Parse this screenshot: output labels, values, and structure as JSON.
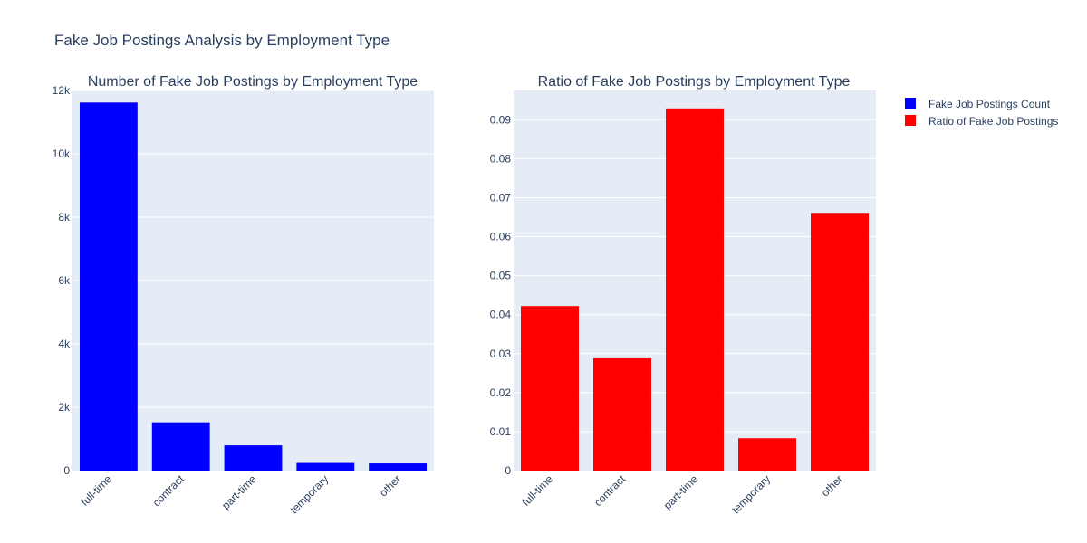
{
  "figure": {
    "title": "Fake Job Postings Analysis by Employment Type",
    "plot_bg": "#e5ecf6",
    "grid_color": "#ffffff",
    "text_color": "#2a3f5f"
  },
  "legend": {
    "items": [
      {
        "label": "Fake Job Postings Count",
        "color": "#0000ff"
      },
      {
        "label": "Ratio of Fake Job Postings",
        "color": "#ff0000"
      }
    ]
  },
  "chart_data": [
    {
      "type": "bar",
      "title": "Number of Fake Job Postings by Employment Type",
      "series_name": "Fake Job Postings Count",
      "color": "#0000ff",
      "categories": [
        "full-time",
        "contract",
        "part-time",
        "temporary",
        "other"
      ],
      "values": [
        11620,
        1524,
        797,
        241,
        227
      ],
      "ylim": [
        0,
        12000
      ],
      "yticks": [
        0,
        2000,
        4000,
        6000,
        8000,
        10000,
        12000
      ],
      "ytick_labels": [
        "0",
        "2k",
        "4k",
        "6k",
        "8k",
        "10k",
        "12k"
      ],
      "grid": true
    },
    {
      "type": "bar",
      "title": "Ratio of Fake Job Postings by Employment Type",
      "series_name": "Ratio of Fake Job Postings",
      "color": "#ff0000",
      "categories": [
        "full-time",
        "contract",
        "part-time",
        "temporary",
        "other"
      ],
      "values": [
        0.0422,
        0.0288,
        0.0929,
        0.0083,
        0.0661
      ],
      "ylim": [
        0,
        0.0975
      ],
      "yticks": [
        0,
        0.01,
        0.02,
        0.03,
        0.04,
        0.05,
        0.06,
        0.07,
        0.08,
        0.09
      ],
      "ytick_labels": [
        "0",
        "0.01",
        "0.02",
        "0.03",
        "0.04",
        "0.05",
        "0.06",
        "0.07",
        "0.08",
        "0.09"
      ],
      "grid": true
    }
  ]
}
